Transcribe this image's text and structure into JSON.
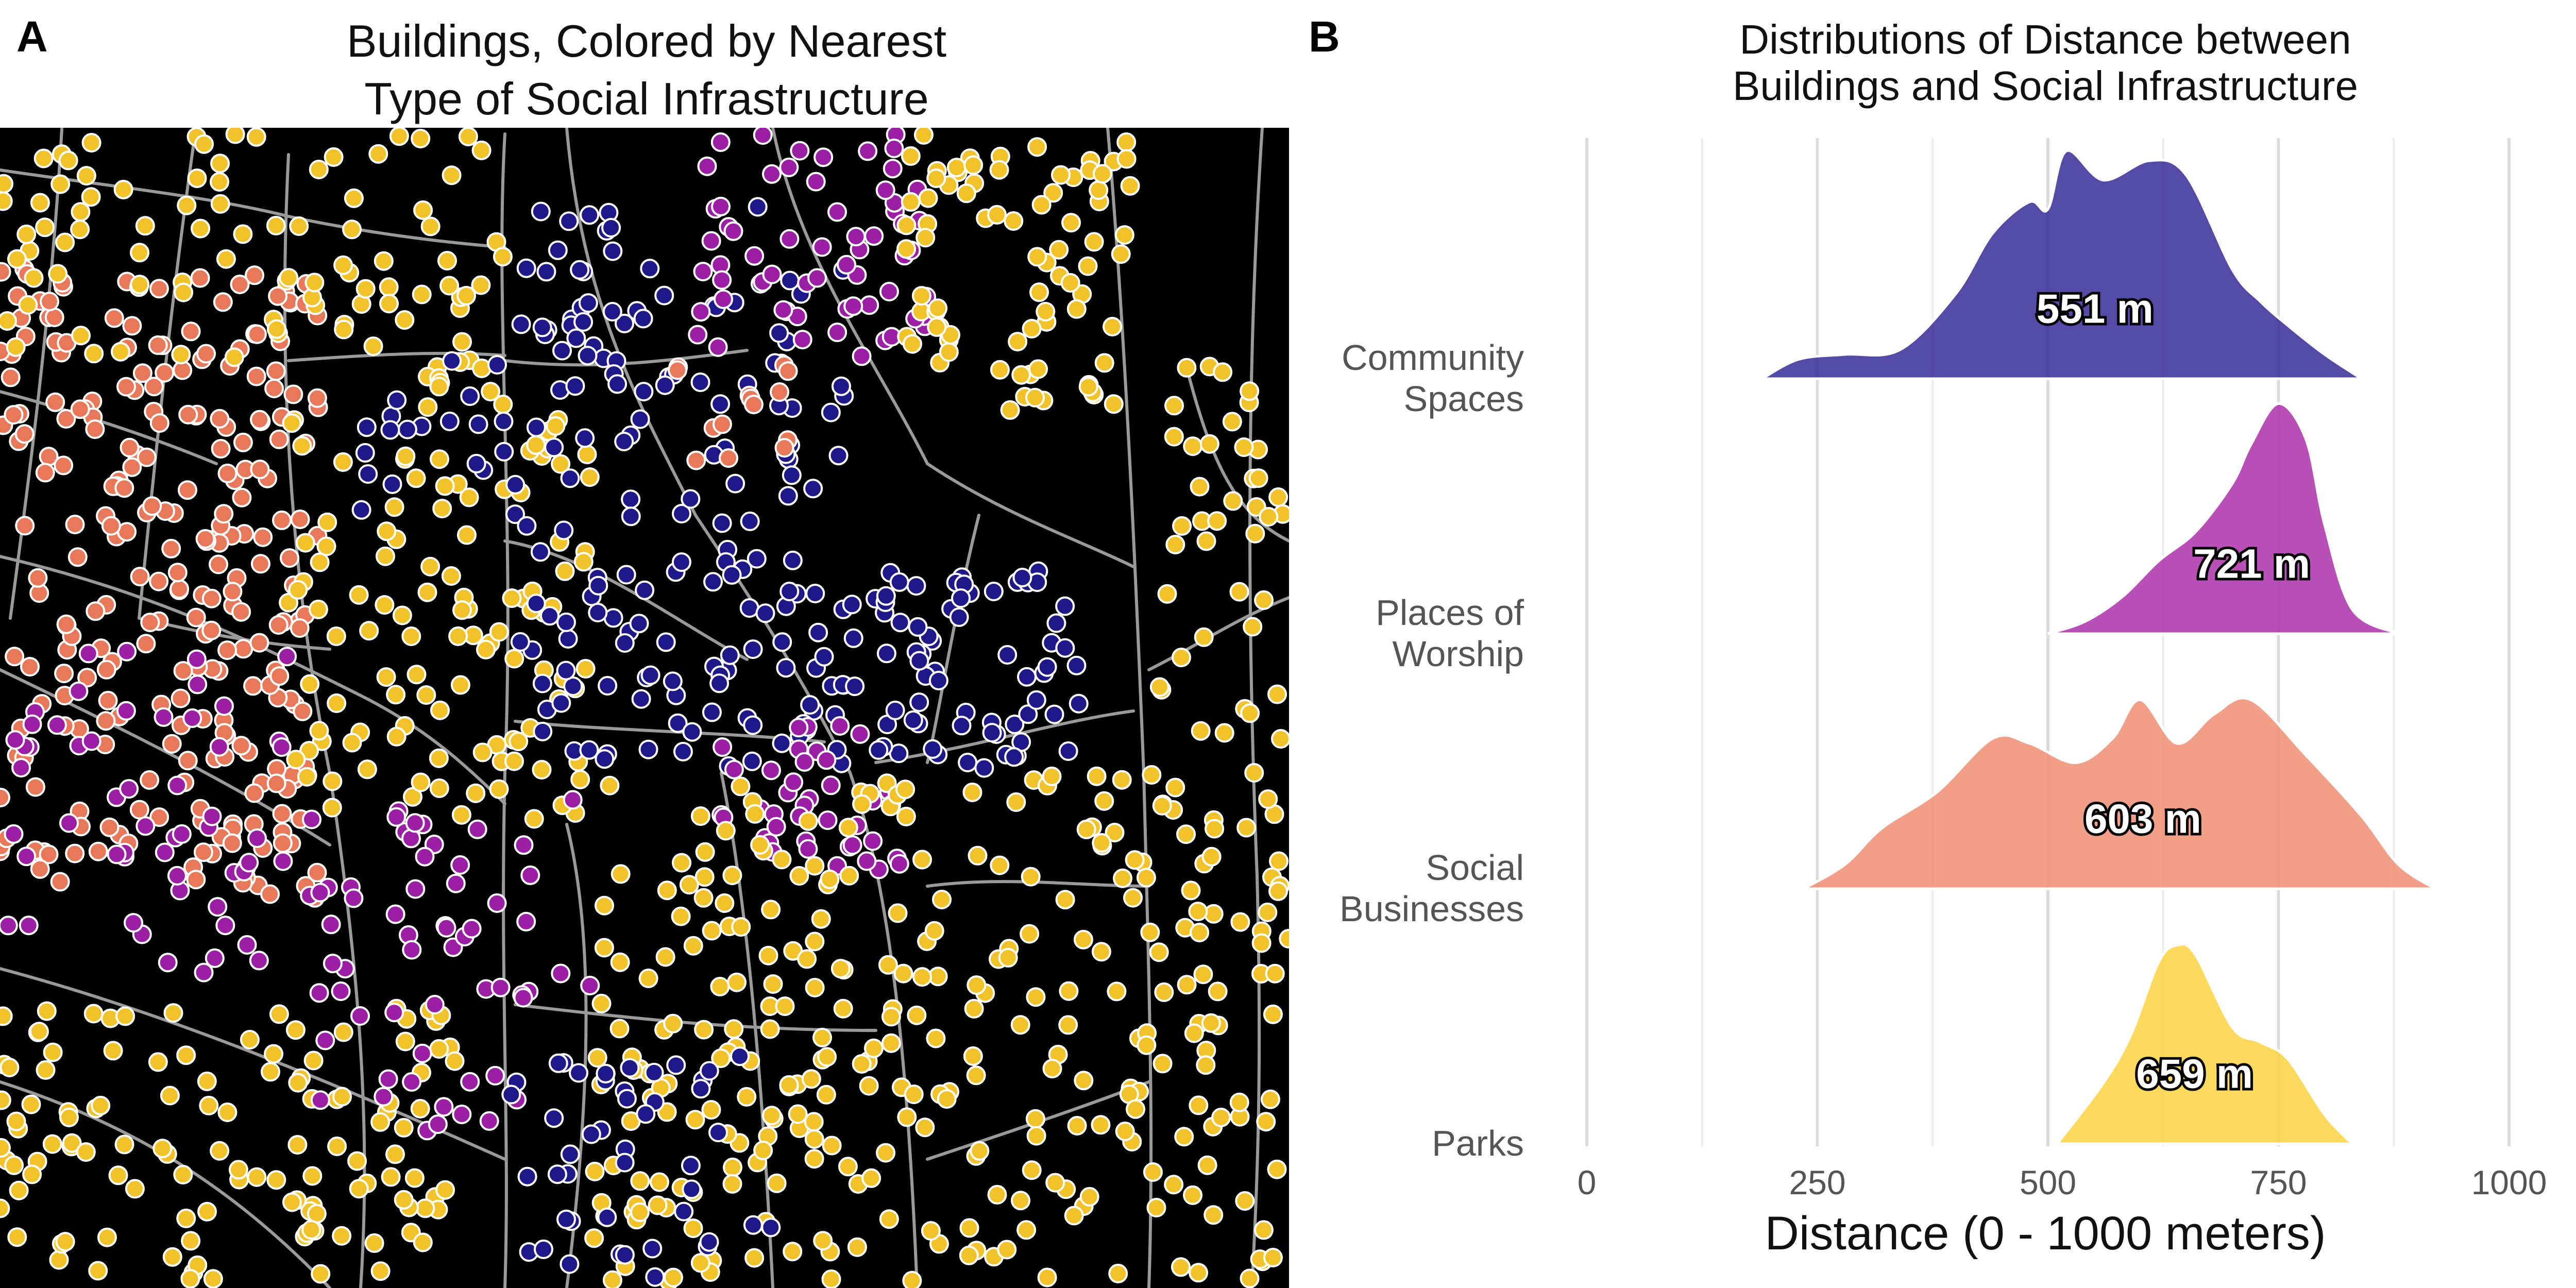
{
  "panel_a": {
    "letter": "A",
    "title_line1": "Buildings, Colored by Nearest",
    "title_line2": "Type of Social Infrastructure",
    "background": "#000000",
    "road_color": "#9a9a9a",
    "category_colors": {
      "community_spaces": "#1f1888",
      "places_of_worship": "#9b1fa4",
      "social_businesses": "#e8785a",
      "parks": "#f2c22a"
    }
  },
  "panel_b": {
    "letter": "B",
    "title_line1": "Distributions of Distance between",
    "title_line2": "Buildings and Social Infrastructure"
  },
  "chart_data": {
    "type": "area",
    "title": "Distributions of Distance between Buildings and Social Infrastructure",
    "xlabel": "Distance (0 - 1000 meters)",
    "ylabel": "",
    "xlim": [
      0,
      1000
    ],
    "xticks": [
      0,
      250,
      500,
      750,
      1000
    ],
    "grid": "vertical",
    "categories": [
      {
        "label_line1": "Community",
        "label_line2": "Spaces",
        "median_label": "551 m",
        "median": 551,
        "color": "#2e2394",
        "x": [
          190,
          230,
          280,
          340,
          400,
          440,
          480,
          500,
          520,
          560,
          610,
          650,
          700,
          730,
          760,
          800,
          840
        ],
        "density": [
          0.0,
          0.08,
          0.1,
          0.12,
          0.35,
          0.6,
          0.73,
          0.7,
          0.94,
          0.82,
          0.9,
          0.84,
          0.45,
          0.32,
          0.22,
          0.1,
          0.0
        ]
      },
      {
        "label_line1": "Places of",
        "label_line2": "Worship",
        "median_label": "721 m",
        "median": 721,
        "color": "#a829a8",
        "x": [
          500,
          540,
          580,
          620,
          660,
          700,
          720,
          750,
          780,
          800,
          830,
          880
        ],
        "density": [
          0.0,
          0.05,
          0.15,
          0.3,
          0.42,
          0.62,
          0.78,
          0.95,
          0.8,
          0.45,
          0.1,
          0.0
        ]
      },
      {
        "label_line1": "Social",
        "label_line2": "Businesses",
        "median_label": "603 m",
        "median": 603,
        "color": "#ee8a6e",
        "x": [
          235,
          280,
          320,
          380,
          440,
          480,
          530,
          570,
          600,
          640,
          680,
          720,
          780,
          840,
          880,
          920
        ],
        "density": [
          0.0,
          0.1,
          0.25,
          0.4,
          0.62,
          0.6,
          0.52,
          0.62,
          0.78,
          0.6,
          0.72,
          0.78,
          0.55,
          0.3,
          0.1,
          0.0
        ]
      },
      {
        "label_line1": "Parks",
        "label_line2": "",
        "median_label": "659 m",
        "median": 659,
        "color": "#fcd13b",
        "x": [
          510,
          560,
          590,
          620,
          640,
          660,
          700,
          730,
          760,
          800,
          830
        ],
        "density": [
          0.0,
          0.25,
          0.45,
          0.75,
          0.82,
          0.78,
          0.48,
          0.42,
          0.35,
          0.12,
          0.0
        ]
      }
    ]
  }
}
